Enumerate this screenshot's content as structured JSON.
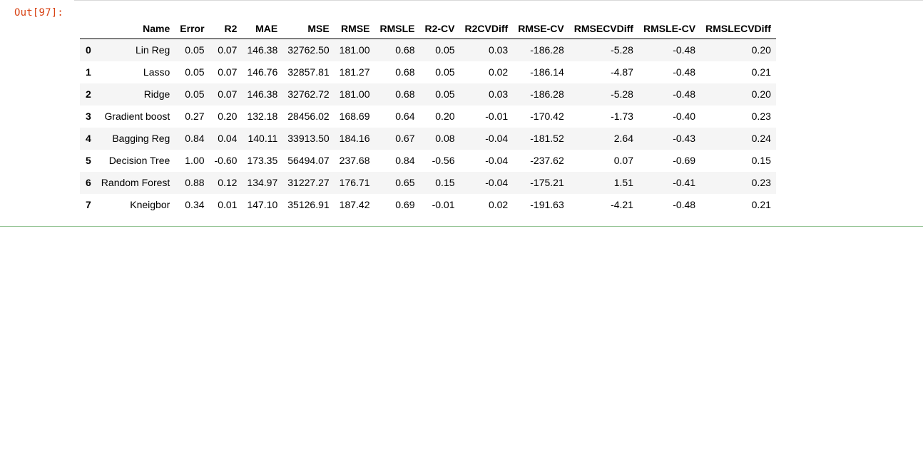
{
  "cell": {
    "prompt": "Out[97]:"
  },
  "table": {
    "columns": [
      "",
      "Name",
      "Error",
      "R2",
      "MAE",
      "MSE",
      "RMSE",
      "RMSLE",
      "R2-CV",
      "R2CVDiff",
      "RMSE-CV",
      "RMSECVDiff",
      "RMSLE-CV",
      "RMSLECVDiff"
    ],
    "rows": [
      [
        "0",
        "Lin Reg",
        "0.05",
        "0.07",
        "146.38",
        "32762.50",
        "181.00",
        "0.68",
        "0.05",
        "0.03",
        "-186.28",
        "-5.28",
        "-0.48",
        "0.20"
      ],
      [
        "1",
        "Lasso",
        "0.05",
        "0.07",
        "146.76",
        "32857.81",
        "181.27",
        "0.68",
        "0.05",
        "0.02",
        "-186.14",
        "-4.87",
        "-0.48",
        "0.21"
      ],
      [
        "2",
        "Ridge",
        "0.05",
        "0.07",
        "146.38",
        "32762.72",
        "181.00",
        "0.68",
        "0.05",
        "0.03",
        "-186.28",
        "-5.28",
        "-0.48",
        "0.20"
      ],
      [
        "3",
        "Gradient boost",
        "0.27",
        "0.20",
        "132.18",
        "28456.02",
        "168.69",
        "0.64",
        "0.20",
        "-0.01",
        "-170.42",
        "-1.73",
        "-0.40",
        "0.23"
      ],
      [
        "4",
        "Bagging Reg",
        "0.84",
        "0.04",
        "140.11",
        "33913.50",
        "184.16",
        "0.67",
        "0.08",
        "-0.04",
        "-181.52",
        "2.64",
        "-0.43",
        "0.24"
      ],
      [
        "5",
        "Decision Tree",
        "1.00",
        "-0.60",
        "173.35",
        "56494.07",
        "237.68",
        "0.84",
        "-0.56",
        "-0.04",
        "-237.62",
        "0.07",
        "-0.69",
        "0.15"
      ],
      [
        "6",
        "Random Forest",
        "0.88",
        "0.12",
        "134.97",
        "31227.27",
        "176.71",
        "0.65",
        "0.15",
        "-0.04",
        "-175.21",
        "1.51",
        "-0.41",
        "0.23"
      ],
      [
        "7",
        "Kneigbor",
        "0.34",
        "0.01",
        "147.10",
        "35126.91",
        "187.42",
        "0.69",
        "-0.01",
        "0.02",
        "-191.63",
        "-4.21",
        "-0.48",
        "0.21"
      ]
    ]
  }
}
